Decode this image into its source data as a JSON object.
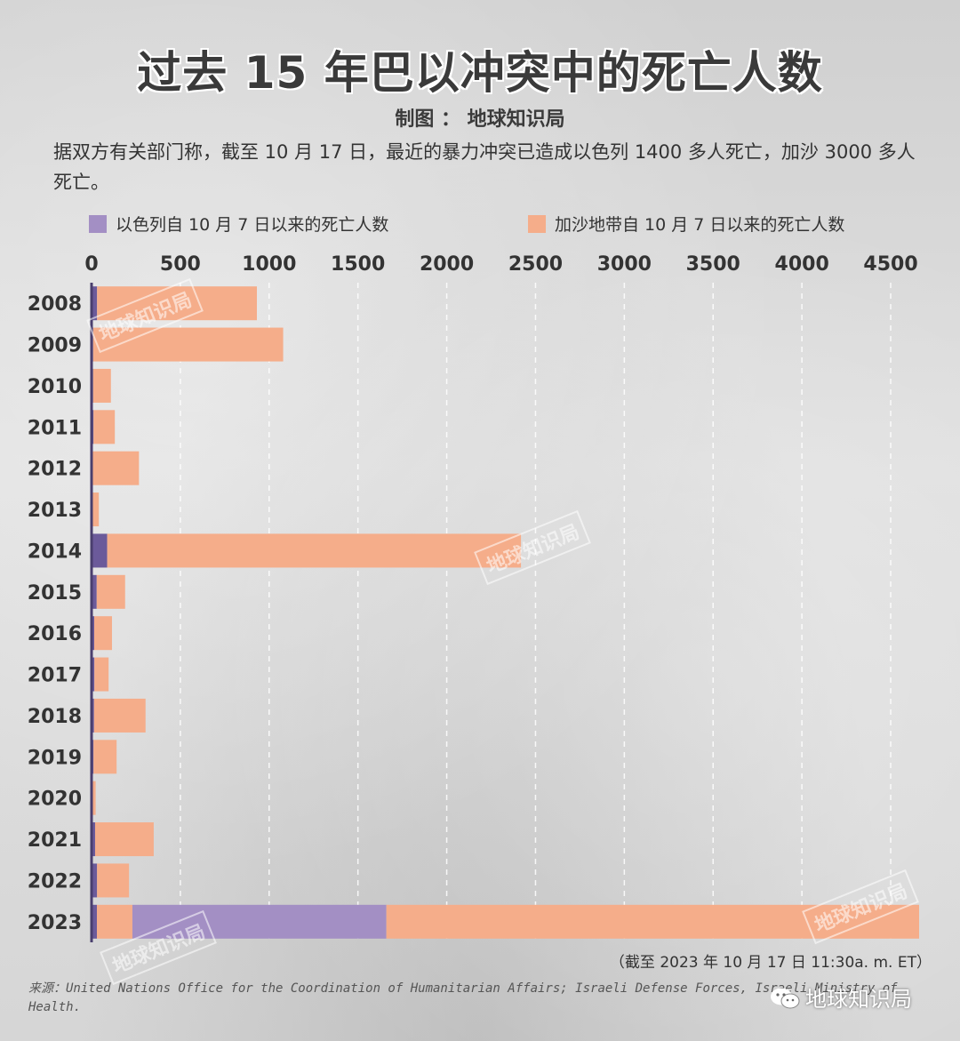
{
  "title": "过去 15 年巴以冲突中的死亡人数",
  "credit": "制图 ： 地球知识局",
  "note": "据双方有关部门称，截至 10 月 17 日，最近的暴力冲突已造成以色列 1400 多人死亡，加沙 3000 多人死亡。",
  "as_of": "（截至 2023 年 10 月 17 日 11:30a. m. ET）",
  "source": "来源：United Nations Office for the Coordination of Humanitarian Affairs; Israeli Defense Forces, Israeli Ministry of Health.",
  "brand": "地球知识局",
  "watermark": "地球知识局",
  "colors": {
    "israel": "#a38fc4",
    "gaza": "#f5ad8a",
    "israel_dark": "#6b5a9a"
  },
  "chart_data": {
    "type": "bar",
    "orientation": "horizontal",
    "stacked": true,
    "categories": [
      "2008",
      "2009",
      "2010",
      "2011",
      "2012",
      "2013",
      "2014",
      "2015",
      "2016",
      "2017",
      "2018",
      "2019",
      "2020",
      "2021",
      "2022",
      "2023"
    ],
    "series": [
      {
        "name": "以色列",
        "values": [
          31,
          9,
          9,
          11,
          7,
          6,
          88,
          29,
          15,
          16,
          14,
          11,
          3,
          20,
          31,
          30
        ],
        "color": "#6b5a9a"
      },
      {
        "name": "加沙",
        "values": [
          900,
          1070,
          100,
          120,
          260,
          35,
          2330,
          160,
          100,
          80,
          290,
          130,
          20,
          330,
          180,
          200
        ],
        "color": "#f5ad8a"
      },
      {
        "name": "以色列自 10 月 7 日以来的死亡人数",
        "values": [
          0,
          0,
          0,
          0,
          0,
          0,
          0,
          0,
          0,
          0,
          0,
          0,
          0,
          0,
          0,
          1430
        ],
        "color": "#a38fc4"
      },
      {
        "name": "加沙地带自 10 月 7 日以来的死亡人数",
        "values": [
          0,
          0,
          0,
          0,
          0,
          0,
          0,
          0,
          0,
          0,
          0,
          0,
          0,
          0,
          0,
          3000
        ],
        "color": "#f5ad8a"
      }
    ],
    "legend": [
      {
        "label": "以色列自 10 月 7 日以来的死亡人数",
        "color": "#a38fc4"
      },
      {
        "label": "加沙地带自 10 月 7 日以来的死亡人数",
        "color": "#f5ad8a"
      }
    ],
    "legend_position": "top",
    "xticks": [
      0,
      500,
      1000,
      1500,
      2000,
      2500,
      3000,
      3500,
      4000,
      4500
    ],
    "xlim": [
      0,
      4650
    ],
    "grid": true
  }
}
